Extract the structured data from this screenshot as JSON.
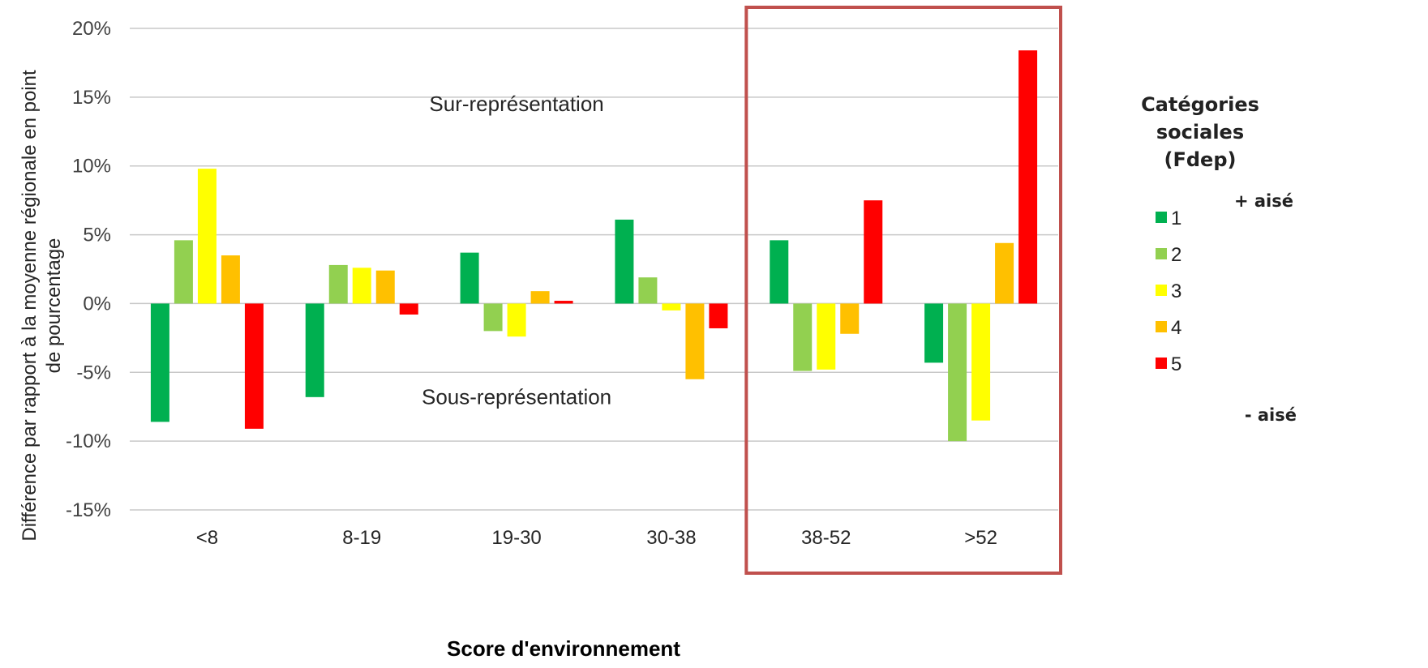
{
  "chart_data": {
    "type": "bar",
    "title": "",
    "xlabel": "Score d'environnement",
    "ylabel": [
      "Différence par rapport à la moyenne régionale en point",
      "de pourcentage"
    ],
    "ylim": [
      -15,
      20
    ],
    "yticks": [
      20,
      15,
      10,
      5,
      0,
      -5,
      -10,
      -15
    ],
    "ytick_labels": [
      "20%",
      "15%",
      "10%",
      "5%",
      "0%",
      "-5%",
      "-10%",
      "-15%"
    ],
    "categories": [
      "<8",
      "8-19",
      "19-30",
      "30-38",
      "38-52",
      ">52"
    ],
    "series": [
      {
        "name": "1",
        "color": "#00B050",
        "values": [
          -8.6,
          -6.8,
          3.7,
          6.1,
          4.6,
          -4.3
        ]
      },
      {
        "name": "2",
        "color": "#92D050",
        "values": [
          4.6,
          2.8,
          -2.0,
          1.9,
          -4.9,
          -10.0
        ]
      },
      {
        "name": "3",
        "color": "#FFFF00",
        "values": [
          9.8,
          2.6,
          -2.4,
          -0.5,
          -4.8,
          -8.5
        ]
      },
      {
        "name": "4",
        "color": "#FFC000",
        "values": [
          3.5,
          2.4,
          0.9,
          -5.5,
          -2.2,
          4.4
        ]
      },
      {
        "name": "5",
        "color": "#FF0000",
        "values": [
          -9.1,
          -0.8,
          0.2,
          -1.8,
          7.5,
          18.4
        ]
      }
    ],
    "annotations": {
      "over": "Sur-représentation",
      "under": "Sous-représentation"
    },
    "highlight": {
      "categories": [
        "38-52",
        ">52"
      ],
      "color": "#C0504D"
    },
    "grid": true,
    "legend": {
      "position": "right",
      "title": [
        "Catégories",
        "sociales",
        "(Fdep)"
      ],
      "top_note": "+ aisé",
      "bottom_note": "- aisé"
    }
  }
}
